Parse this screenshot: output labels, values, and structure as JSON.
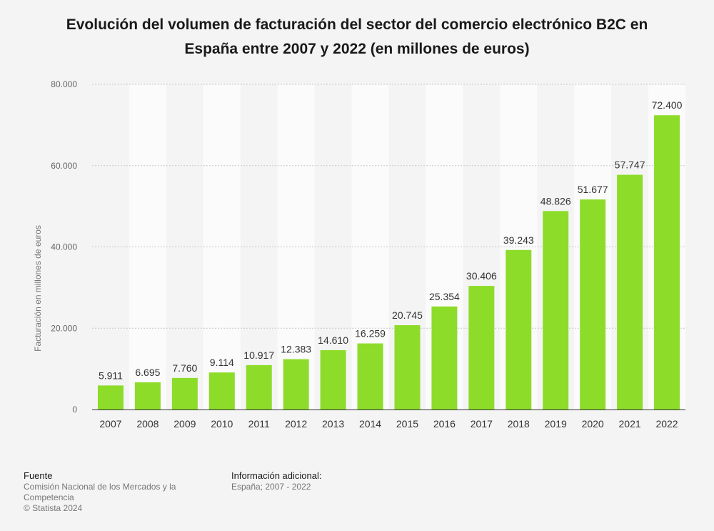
{
  "chart_data": {
    "type": "bar",
    "title": "Evolución del volumen de facturación del sector del comercio electrónico B2C en España entre 2007 y 2022 (en millones de euros)",
    "categories": [
      "2007",
      "2008",
      "2009",
      "2010",
      "2011",
      "2012",
      "2013",
      "2014",
      "2015",
      "2016",
      "2017",
      "2018",
      "2019",
      "2020",
      "2021",
      "2022"
    ],
    "values": [
      5911,
      6695,
      7760,
      9114,
      10917,
      12383,
      14610,
      16259,
      20745,
      25354,
      30406,
      39243,
      48826,
      51677,
      57747,
      72400
    ],
    "value_labels": [
      "5.911",
      "6.695",
      "7.760",
      "9.114",
      "10.917",
      "12.383",
      "14.610",
      "16.259",
      "20.745",
      "25.354",
      "30.406",
      "39.243",
      "48.826",
      "51.677",
      "57.747",
      "72.400"
    ],
    "xlabel": "",
    "ylabel": "Facturación en millones de euros",
    "ylim": [
      0,
      80000
    ],
    "yticks": [
      0,
      20000,
      40000,
      60000,
      80000
    ],
    "ytick_labels": [
      "0",
      "20.000",
      "40.000",
      "60.000",
      "80.000"
    ],
    "grid": true,
    "bar_color": "#8ddc2a"
  },
  "footer": {
    "source_heading": "Fuente",
    "source_line1": "Comisión Nacional de los Mercados y la",
    "source_line2": "Competencia",
    "copyright": "© Statista 2024",
    "info_heading": "Información adicional:",
    "info_text": "España; 2007 - 2022"
  }
}
